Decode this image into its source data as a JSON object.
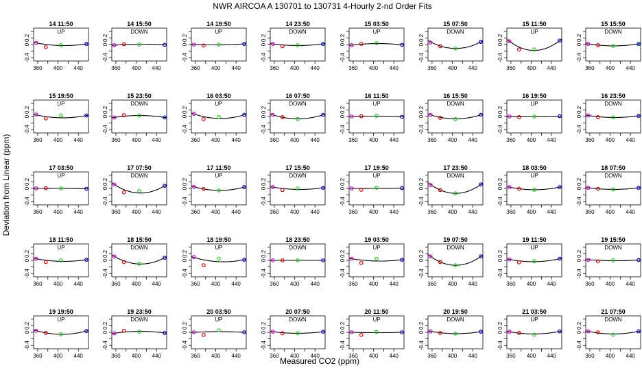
{
  "title": "NWR   AIRCOA A   130701 to 130731   4-Hourly 2-nd Order Fits",
  "xlabel": "Measured CO2 (ppm)",
  "ylabel": "Deviation from Linear (ppm)",
  "chart_data": {
    "type": "scatter",
    "title": "NWR   AIRCOA A   130701 to 130731   4-Hourly 2-nd Order Fits",
    "xlabel": "Measured CO2 (ppm)",
    "ylabel": "Deviation from Linear (ppm)",
    "xlim": [
      352,
      460
    ],
    "ylim": [
      -0.5,
      0.5
    ],
    "xticks": [
      360,
      380,
      400,
      420,
      440
    ],
    "xtick_labels": [
      "360",
      "",
      "400",
      "",
      "440"
    ],
    "yticks": [
      -0.4,
      -0.2,
      0.0,
      0.2,
      0.4
    ],
    "ytick_labels": [
      "-0.4",
      "",
      "0",
      "0.2",
      ""
    ],
    "standards_x": [
      357,
      376,
      406,
      456
    ],
    "marker_colors": [
      "#cc00cc",
      "#dd0000",
      "#22cc22",
      "#0000cc"
    ],
    "line_color": "#000000",
    "panels": [
      {
        "time": "14 11:50",
        "dir": "UP",
        "points": [
          0.05,
          -0.08,
          -0.02,
          0.02
        ],
        "curve": [
          0.05,
          -0.05,
          -0.03,
          0.02
        ]
      },
      {
        "time": "14 15:50",
        "dir": "DOWN",
        "points": [
          -0.02,
          0.01,
          0.0,
          -0.01
        ],
        "curve": [
          -0.02,
          0.0,
          0.01,
          -0.01
        ]
      },
      {
        "time": "14 19:50",
        "dir": "UP",
        "points": [
          0.0,
          -0.03,
          0.0,
          0.02
        ],
        "curve": [
          0.0,
          -0.02,
          -0.01,
          0.02
        ]
      },
      {
        "time": "14 23:50",
        "dir": "DOWN",
        "points": [
          0.02,
          -0.05,
          -0.02,
          0.02
        ],
        "curve": [
          0.02,
          -0.03,
          -0.03,
          0.02
        ]
      },
      {
        "time": "15 03:50",
        "dir": "UP",
        "points": [
          -0.02,
          0.02,
          0.04,
          -0.01
        ],
        "curve": [
          -0.02,
          0.02,
          0.03,
          -0.01
        ]
      },
      {
        "time": "15 07:50",
        "dir": "DOWN",
        "points": [
          0.06,
          -0.05,
          -0.12,
          0.08
        ],
        "curve": [
          0.08,
          -0.05,
          -0.12,
          0.08
        ]
      },
      {
        "time": "15 11:50",
        "dir": "UP",
        "points": [
          0.1,
          -0.15,
          -0.15,
          0.12
        ],
        "curve": [
          0.1,
          -0.08,
          -0.18,
          0.12
        ]
      },
      {
        "time": "15 15:50",
        "dir": "DOWN",
        "points": [
          0.02,
          -0.02,
          -0.04,
          0.02
        ],
        "curve": [
          0.02,
          -0.03,
          -0.04,
          0.02
        ]
      },
      {
        "time": "15 19:50",
        "dir": "UP",
        "points": [
          0.06,
          -0.06,
          0.03,
          0.03
        ],
        "curve": [
          0.05,
          -0.02,
          -0.04,
          0.03
        ]
      },
      {
        "time": "15 23:50",
        "dir": "DOWN",
        "points": [
          -0.03,
          0.04,
          0.03,
          -0.03
        ],
        "curve": [
          -0.03,
          0.03,
          0.03,
          -0.03
        ]
      },
      {
        "time": "16 03:50",
        "dir": "UP",
        "points": [
          0.08,
          -0.08,
          -0.02,
          0.05
        ],
        "curve": [
          0.08,
          -0.03,
          -0.06,
          0.05
        ]
      },
      {
        "time": "16 07:50",
        "dir": "DOWN",
        "points": [
          0.05,
          -0.02,
          -0.08,
          0.05
        ],
        "curve": [
          0.05,
          -0.04,
          -0.07,
          0.05
        ]
      },
      {
        "time": "16 11:50",
        "dir": "UP",
        "points": [
          0.0,
          0.01,
          0.02,
          -0.01
        ],
        "curve": [
          0.0,
          0.01,
          0.01,
          -0.01
        ]
      },
      {
        "time": "16 15:50",
        "dir": "DOWN",
        "points": [
          0.05,
          -0.04,
          -0.08,
          0.05
        ],
        "curve": [
          0.05,
          -0.04,
          -0.07,
          0.05
        ]
      },
      {
        "time": "16 19:50",
        "dir": "UP",
        "points": [
          0.0,
          -0.02,
          0.0,
          0.01
        ],
        "curve": [
          0.0,
          -0.01,
          -0.01,
          0.01
        ]
      },
      {
        "time": "16 23:50",
        "dir": "DOWN",
        "points": [
          0.03,
          -0.02,
          -0.03,
          0.02
        ],
        "curve": [
          0.03,
          -0.02,
          -0.03,
          0.02
        ]
      },
      {
        "time": "17 03:50",
        "dir": "UP",
        "points": [
          0.0,
          0.01,
          0.0,
          -0.01
        ],
        "curve": [
          0.0,
          0.01,
          0.0,
          -0.01
        ]
      },
      {
        "time": "17 07:50",
        "dir": "DOWN",
        "points": [
          0.12,
          -0.12,
          -0.08,
          0.08
        ],
        "curve": [
          0.12,
          -0.05,
          -0.14,
          0.08
        ]
      },
      {
        "time": "17 11:50",
        "dir": "UP",
        "points": [
          0.05,
          -0.02,
          -0.06,
          0.04
        ],
        "curve": [
          0.05,
          -0.03,
          -0.06,
          0.04
        ]
      },
      {
        "time": "17 15:50",
        "dir": "DOWN",
        "points": [
          0.04,
          -0.05,
          0.0,
          0.02
        ],
        "curve": [
          0.04,
          -0.02,
          -0.03,
          0.02
        ]
      },
      {
        "time": "17 19:50",
        "dir": "UP",
        "points": [
          0.0,
          -0.04,
          0.02,
          0.01
        ],
        "curve": [
          0.0,
          -0.01,
          0.0,
          0.01
        ]
      },
      {
        "time": "17 23:50",
        "dir": "DOWN",
        "points": [
          0.1,
          -0.05,
          -0.15,
          0.12
        ],
        "curve": [
          0.12,
          -0.07,
          -0.15,
          0.12
        ]
      },
      {
        "time": "18 03:50",
        "dir": "UP",
        "points": [
          0.04,
          -0.01,
          -0.04,
          0.04
        ],
        "curve": [
          0.04,
          -0.02,
          -0.04,
          0.04
        ]
      },
      {
        "time": "18 07:50",
        "dir": "DOWN",
        "points": [
          0.02,
          -0.01,
          -0.03,
          0.02
        ],
        "curve": [
          0.02,
          -0.02,
          -0.03,
          0.02
        ]
      },
      {
        "time": "18 11:50",
        "dir": "UP",
        "points": [
          0.05,
          -0.05,
          0.0,
          0.02
        ],
        "curve": [
          0.05,
          -0.02,
          -0.03,
          0.02
        ]
      },
      {
        "time": "18 15:50",
        "dir": "DOWN",
        "points": [
          0.12,
          -0.05,
          -0.1,
          0.08
        ],
        "curve": [
          0.12,
          -0.04,
          -0.11,
          0.08
        ]
      },
      {
        "time": "18 19:50",
        "dir": "UP",
        "points": [
          0.1,
          -0.15,
          0.05,
          0.02
        ],
        "curve": [
          0.09,
          -0.02,
          -0.04,
          0.02
        ]
      },
      {
        "time": "18 23:50",
        "dir": "DOWN",
        "points": [
          0.0,
          0.0,
          0.0,
          0.0
        ],
        "curve": [
          0.0,
          0.0,
          0.0,
          0.0
        ]
      },
      {
        "time": "19 03:50",
        "dir": "UP",
        "points": [
          0.05,
          -0.08,
          0.05,
          0.02
        ],
        "curve": [
          0.05,
          -0.02,
          -0.02,
          0.02
        ]
      },
      {
        "time": "19 07:50",
        "dir": "DOWN",
        "points": [
          0.12,
          -0.05,
          -0.15,
          0.12
        ],
        "curve": [
          0.12,
          -0.07,
          -0.15,
          0.12
        ]
      },
      {
        "time": "19 11:50",
        "dir": "UP",
        "points": [
          0.03,
          -0.06,
          -0.03,
          0.05
        ],
        "curve": [
          0.03,
          -0.02,
          -0.04,
          0.05
        ]
      },
      {
        "time": "19 15:50",
        "dir": "DOWN",
        "points": [
          0.02,
          -0.03,
          0.0,
          0.01
        ],
        "curve": [
          0.02,
          -0.01,
          -0.01,
          0.01
        ]
      },
      {
        "time": "19 19:50",
        "dir": "UP",
        "points": [
          0.05,
          -0.02,
          -0.06,
          0.04
        ],
        "curve": [
          0.05,
          -0.03,
          -0.06,
          0.04
        ]
      },
      {
        "time": "19 23:50",
        "dir": "DOWN",
        "points": [
          -0.03,
          0.05,
          0.02,
          -0.02
        ],
        "curve": [
          -0.03,
          0.02,
          0.03,
          -0.02
        ]
      },
      {
        "time": "20 03:50",
        "dir": "UP",
        "points": [
          0.0,
          -0.08,
          0.06,
          0.0
        ],
        "curve": [
          0.0,
          -0.01,
          0.02,
          0.0
        ]
      },
      {
        "time": "20 07:50",
        "dir": "DOWN",
        "points": [
          0.02,
          -0.03,
          -0.03,
          0.02
        ],
        "curve": [
          0.02,
          -0.02,
          -0.03,
          0.02
        ]
      },
      {
        "time": "20 11:50",
        "dir": "UP",
        "points": [
          0.0,
          -0.08,
          0.01,
          0.0
        ],
        "curve": [
          0.0,
          -0.02,
          -0.01,
          0.0
        ]
      },
      {
        "time": "20 19:50",
        "dir": "DOWN",
        "points": [
          0.03,
          -0.02,
          -0.04,
          0.02
        ],
        "curve": [
          0.03,
          -0.02,
          -0.04,
          0.02
        ]
      },
      {
        "time": "21 03:50",
        "dir": "UP",
        "points": [
          0.02,
          -0.02,
          -0.07,
          0.03
        ],
        "curve": [
          0.02,
          -0.03,
          -0.05,
          0.03
        ]
      },
      {
        "time": "21 07:50",
        "dir": "DOWN",
        "points": [
          0.03,
          0.0,
          -0.07,
          0.03
        ],
        "curve": [
          0.03,
          -0.03,
          -0.05,
          0.03
        ]
      }
    ]
  }
}
